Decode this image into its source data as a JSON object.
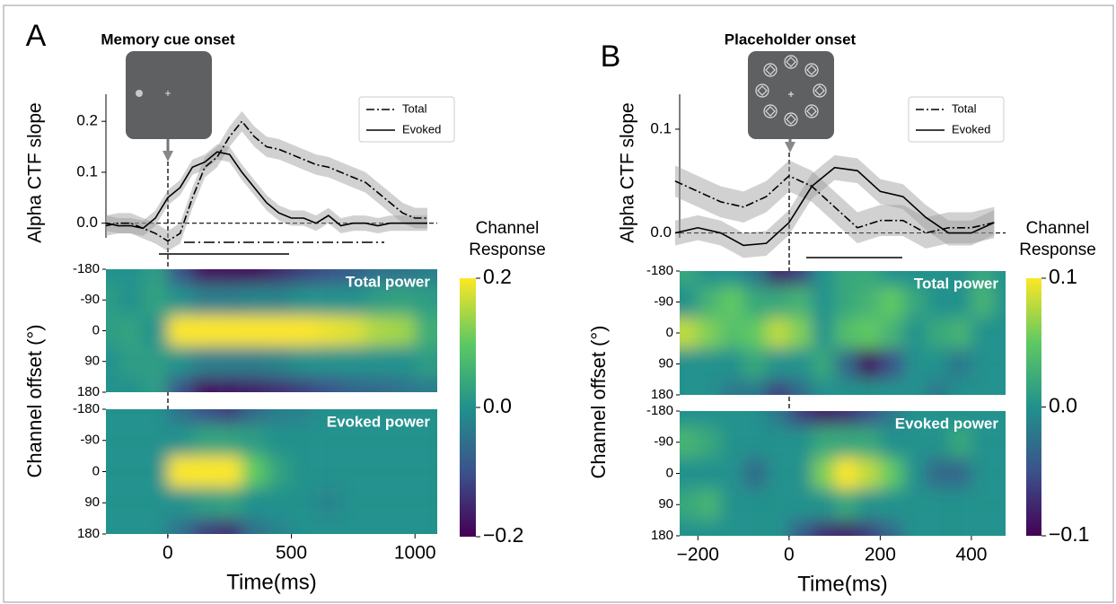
{
  "chart_data": [
    {
      "type": "line",
      "panel": "A",
      "title": "Memory cue onset",
      "ylabel": "Alpha CTF slope",
      "legend": "upper right",
      "xlim": [
        -250,
        1090
      ],
      "ylim": [
        -0.064,
        0.262
      ],
      "yticks": [
        {
          "value": 0,
          "label": "0.0"
        },
        0.1,
        0.2
      ],
      "x": [
        -250,
        -200,
        -150,
        -100,
        -50,
        0,
        50,
        100,
        150,
        200,
        250,
        300,
        350,
        400,
        450,
        500,
        550,
        600,
        650,
        700,
        750,
        800,
        850,
        900,
        950,
        1000,
        1050
      ],
      "series": [
        {
          "name": "Total",
          "color": "#000000",
          "linestyle": "dashdot",
          "values": [
            -0.005,
            0,
            0,
            -0.01,
            -0.02,
            -0.035,
            -0.02,
            0.05,
            0.11,
            0.13,
            0.17,
            0.2,
            0.17,
            0.15,
            0.145,
            0.135,
            0.125,
            0.115,
            0.11,
            0.1,
            0.09,
            0.08,
            0.06,
            0.04,
            0.02,
            0.01,
            0.01
          ],
          "errors": [
            0.02,
            0.02,
            0.02,
            0.02,
            0.02,
            0.02,
            0.02,
            0.02,
            0.02,
            0.02,
            0.02,
            0.02,
            0.02,
            0.02,
            0.02,
            0.02,
            0.02,
            0.02,
            0.02,
            0.02,
            0.02,
            0.02,
            0.02,
            0.02,
            0.02,
            0.02,
            0.02
          ]
        },
        {
          "name": "Evoked",
          "color": "#000000",
          "linestyle": "solid",
          "values": [
            0,
            -0.005,
            -0.005,
            -0.01,
            0.01,
            0.05,
            0.07,
            0.11,
            0.12,
            0.14,
            0.135,
            0.1,
            0.07,
            0.04,
            0.02,
            0.01,
            0.01,
            0,
            0.015,
            -0.005,
            0,
            0,
            -0.005,
            0,
            0,
            0,
            0
          ],
          "errors": [
            0.015,
            0.015,
            0.015,
            0.015,
            0.015,
            0.015,
            0.015,
            0.015,
            0.015,
            0.015,
            0.015,
            0.015,
            0.015,
            0.015,
            0.015,
            0.015,
            0.015,
            0.015,
            0.015,
            0.015,
            0.015,
            0.015,
            0.015,
            0.015,
            0.015,
            0.015,
            0.015
          ]
        }
      ]
    },
    {
      "type": "heatmap",
      "label": "Total power",
      "ylabel": "Channel offset (°)",
      "xlim": [
        -250,
        1090
      ],
      "ylim": [
        180,
        -180
      ],
      "yticks": [
        -180,
        -90,
        0,
        90,
        180
      ],
      "zlim": [
        -0.2,
        0.2
      ],
      "colorbar": {
        "label": "Channel Response",
        "ticks": [
          {
            "value": 0.2,
            "label": "0.2"
          },
          {
            "value": 0,
            "label": "0.0"
          },
          {
            "value": -0.2,
            "label": "−0.2"
          }
        ]
      },
      "x": [
        -250,
        -150,
        -50,
        50,
        150,
        250,
        350,
        450,
        550,
        650,
        750,
        850,
        950,
        1050
      ],
      "y": [
        -180,
        -90,
        0,
        90,
        180
      ],
      "values": [
        [
          0,
          0,
          0.02,
          -0.1,
          -0.18,
          -0.18,
          -0.18,
          -0.15,
          -0.12,
          -0.1,
          -0.08,
          -0.05,
          -0.05,
          -0.03
        ],
        [
          0.02,
          0,
          0.03,
          0,
          -0.03,
          -0.03,
          -0.02,
          -0.02,
          0,
          0,
          0,
          0.02,
          0.03,
          0.02
        ],
        [
          0.02,
          0.03,
          0,
          0.2,
          0.2,
          0.2,
          0.2,
          0.2,
          0.2,
          0.19,
          0.18,
          0.15,
          0.14,
          0.05
        ],
        [
          0,
          0.02,
          0.02,
          0,
          -0.03,
          -0.03,
          -0.03,
          -0.02,
          0,
          0,
          0,
          0,
          0,
          0.02
        ],
        [
          0,
          0,
          0.02,
          -0.1,
          -0.18,
          -0.17,
          -0.16,
          -0.14,
          -0.12,
          -0.1,
          -0.07,
          -0.06,
          -0.05,
          -0.03
        ]
      ]
    },
    {
      "type": "heatmap",
      "label": "Evoked power",
      "xlabel": "Time(ms)",
      "xlim": [
        -250,
        1090
      ],
      "ylim": [
        180,
        -180
      ],
      "yticks": [
        -180,
        -90,
        0,
        90,
        180
      ],
      "zlim": [
        -0.2,
        0.2
      ],
      "xticks": [
        0,
        500,
        1000
      ],
      "x": [
        -250,
        -150,
        -50,
        50,
        150,
        250,
        350,
        450,
        550,
        650,
        750,
        850,
        950,
        1050
      ],
      "y": [
        -180,
        -90,
        0,
        90,
        180
      ],
      "values": [
        [
          0,
          0,
          0,
          -0.05,
          -0.1,
          -0.12,
          -0.06,
          -0.03,
          -0.02,
          0,
          0,
          0,
          0,
          0
        ],
        [
          0,
          0,
          0,
          0,
          0.03,
          0.03,
          0.02,
          0,
          0,
          0,
          0,
          0,
          0,
          0
        ],
        [
          0,
          0,
          0,
          0.2,
          0.2,
          0.2,
          0.1,
          0.03,
          0,
          0,
          0,
          0,
          0,
          0
        ],
        [
          0,
          0,
          0,
          0,
          0.02,
          0.03,
          0,
          0,
          0,
          -0.02,
          0,
          0,
          0,
          0
        ],
        [
          0,
          0,
          0,
          -0.05,
          -0.12,
          -0.14,
          -0.05,
          -0.02,
          0,
          0,
          0,
          0,
          0,
          0
        ]
      ]
    },
    {
      "type": "line",
      "panel": "B",
      "title": "Placeholder onset",
      "ylabel": "Alpha CTF slope",
      "legend": "upper right",
      "xlim": [
        -240,
        475
      ],
      "ylim": [
        -0.022,
        0.138
      ],
      "yticks": [
        {
          "value": 0,
          "label": "0.0"
        },
        0.1
      ],
      "x": [
        -250,
        -200,
        -150,
        -100,
        -50,
        0,
        50,
        100,
        150,
        200,
        250,
        300,
        350,
        400,
        450
      ],
      "series": [
        {
          "name": "Total",
          "color": "#000000",
          "linestyle": "dashdot",
          "values": [
            0.05,
            0.04,
            0.03,
            0.025,
            0.035,
            0.055,
            0.045,
            0.025,
            0.005,
            0.012,
            0.012,
            0,
            0.005,
            0.005,
            0.01
          ],
          "errors": [
            0.015,
            0.015,
            0.015,
            0.015,
            0.015,
            0.015,
            0.015,
            0.015,
            0.015,
            0.015,
            0.015,
            0.015,
            0.015,
            0.015,
            0.015
          ]
        },
        {
          "name": "Evoked",
          "color": "#000000",
          "linestyle": "solid",
          "values": [
            0,
            0.005,
            0,
            -0.012,
            -0.01,
            0.01,
            0.045,
            0.063,
            0.06,
            0.04,
            0.035,
            0.015,
            0,
            0,
            0.01
          ],
          "errors": [
            0.012,
            0.012,
            0.012,
            0.012,
            0.012,
            0.012,
            0.012,
            0.012,
            0.012,
            0.012,
            0.012,
            0.012,
            0.012,
            0.012,
            0.012
          ]
        }
      ]
    },
    {
      "type": "heatmap",
      "label": "Total power",
      "ylabel": "Channel offset (°)",
      "xlim": [
        -240,
        475
      ],
      "ylim": [
        180,
        -180
      ],
      "yticks": [
        -180,
        -90,
        0,
        90,
        180
      ],
      "zlim": [
        -0.1,
        0.1
      ],
      "colorbar": {
        "label": "Channel Response",
        "ticks": [
          {
            "value": 0.1,
            "label": "0.1"
          },
          {
            "value": 0,
            "label": "0.0"
          },
          {
            "value": -0.1,
            "label": "−0.1"
          }
        ]
      },
      "x": [
        -225,
        -175,
        -125,
        -75,
        -25,
        25,
        75,
        125,
        175,
        225,
        275,
        325,
        375,
        425,
        475
      ],
      "y": [
        -180,
        -90,
        0,
        90,
        180
      ],
      "values": [
        [
          0.02,
          0,
          0,
          -0.02,
          -0.08,
          -0.06,
          0,
          0.02,
          0.02,
          0,
          0,
          0,
          0,
          0.02,
          0
        ],
        [
          0,
          0.03,
          0.05,
          0.02,
          0.02,
          0.03,
          0,
          0.02,
          0.03,
          0.05,
          0.02,
          0,
          0,
          0.03,
          0
        ],
        [
          0.08,
          0.06,
          0.04,
          0.05,
          0.08,
          0.06,
          0,
          0.04,
          0.05,
          0.03,
          0,
          0.02,
          0.03,
          0,
          0
        ],
        [
          0,
          0,
          0,
          0.02,
          0,
          0,
          0.02,
          -0.03,
          -0.09,
          -0.05,
          0,
          0,
          -0.02,
          0,
          0
        ],
        [
          0,
          0,
          -0.02,
          -0.02,
          -0.06,
          -0.03,
          0,
          0,
          0,
          0,
          0,
          -0.02,
          0,
          0,
          0
        ]
      ]
    },
    {
      "type": "heatmap",
      "label": "Evoked power",
      "xlabel": "Time(ms)",
      "xlim": [
        -240,
        475
      ],
      "ylim": [
        180,
        -180
      ],
      "yticks": [
        -180,
        -90,
        0,
        90,
        180
      ],
      "zlim": [
        -0.1,
        0.1
      ],
      "xticks": [
        {
          "value": -200,
          "label": "−200"
        },
        0,
        200,
        400
      ],
      "x": [
        -225,
        -175,
        -125,
        -75,
        -25,
        25,
        75,
        125,
        175,
        225,
        275,
        325,
        375,
        425,
        475
      ],
      "y": [
        -180,
        -90,
        0,
        90,
        180
      ],
      "values": [
        [
          0,
          0,
          0,
          0,
          -0.02,
          -0.06,
          -0.08,
          -0.07,
          -0.05,
          -0.02,
          0,
          0,
          0,
          0,
          0
        ],
        [
          0.03,
          0.02,
          0,
          0,
          0,
          0,
          0.02,
          0.02,
          0.02,
          0,
          0,
          0,
          0.02,
          0,
          0
        ],
        [
          0,
          0,
          0,
          -0.03,
          0,
          0,
          0.06,
          0.1,
          0.08,
          0.05,
          0,
          -0.03,
          -0.03,
          0,
          0
        ],
        [
          0.02,
          0.03,
          0,
          0,
          0,
          0,
          0,
          0.02,
          0,
          0,
          0,
          0,
          0,
          0,
          0
        ],
        [
          0,
          0,
          0,
          0,
          0,
          -0.04,
          -0.07,
          -0.08,
          -0.06,
          -0.03,
          0,
          0,
          0,
          0,
          0
        ]
      ]
    }
  ]
}
